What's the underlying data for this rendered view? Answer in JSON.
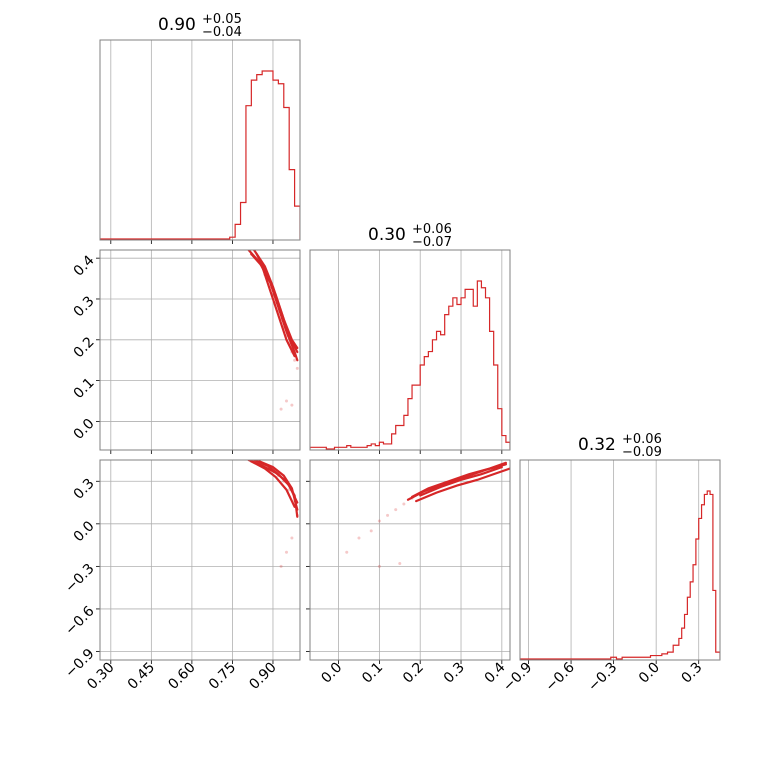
{
  "chart_data": {
    "type": "corner",
    "color": "#d62728",
    "parameters": [
      {
        "range": [
          0.26,
          1.0
        ],
        "ticks": [
          0.3,
          0.45,
          0.6,
          0.75,
          0.9
        ],
        "tick_labels": [
          "0.30",
          "0.45",
          "0.60",
          "0.75",
          "0.90"
        ],
        "title": {
          "median": "0.90",
          "plus": "+0.05",
          "minus": "−0.04"
        },
        "histogram": {
          "edges": [
            0.74,
            0.76,
            0.78,
            0.8,
            0.82,
            0.84,
            0.86,
            0.88,
            0.9,
            0.92,
            0.94,
            0.96,
            0.98,
            1.0
          ],
          "counts": [
            1,
            8,
            20,
            73,
            87,
            90,
            92,
            92,
            87,
            85,
            72,
            38,
            18
          ]
        }
      },
      {
        "range": [
          -0.07,
          0.42
        ],
        "ticks": [
          0.0,
          0.1,
          0.2,
          0.3,
          0.4
        ],
        "tick_labels": [
          "0.0",
          "0.1",
          "0.2",
          "0.3",
          "0.4"
        ],
        "title": {
          "median": "0.30",
          "plus": "+0.06",
          "minus": "−0.07"
        },
        "histogram": {
          "edges": [
            -0.07,
            -0.06,
            -0.05,
            -0.04,
            -0.03,
            -0.02,
            -0.01,
            0.0,
            0.01,
            0.02,
            0.03,
            0.04,
            0.05,
            0.06,
            0.07,
            0.08,
            0.09,
            0.1,
            0.11,
            0.12,
            0.13,
            0.14,
            0.15,
            0.16,
            0.17,
            0.18,
            0.19,
            0.2,
            0.21,
            0.22,
            0.23,
            0.24,
            0.25,
            0.26,
            0.27,
            0.28,
            0.29,
            0.3,
            0.31,
            0.32,
            0.33,
            0.34,
            0.35,
            0.36,
            0.37,
            0.38,
            0.39,
            0.4,
            0.41,
            0.42
          ],
          "counts": [
            1,
            1,
            1,
            1,
            0,
            0,
            1,
            1,
            1,
            2,
            1,
            1,
            1,
            1,
            2,
            3,
            2,
            4,
            3,
            3,
            9,
            14,
            14,
            20,
            30,
            38,
            38,
            50,
            55,
            58,
            65,
            70,
            68,
            80,
            85,
            90,
            86,
            90,
            95,
            95,
            85,
            100,
            96,
            90,
            70,
            50,
            24,
            8,
            4
          ]
        }
      },
      {
        "range": [
          -0.96,
          0.45
        ],
        "ticks": [
          -0.9,
          -0.6,
          -0.3,
          0.0,
          0.3
        ],
        "tick_labels": [
          "−0.9",
          "−0.6",
          "−0.3",
          "0.0",
          "0.3"
        ],
        "title": {
          "median": "0.32",
          "plus": "+0.06",
          "minus": "−0.09"
        },
        "histogram": {
          "edges": [
            -0.96,
            -0.32,
            -0.28,
            -0.24,
            -0.2,
            -0.16,
            -0.12,
            -0.08,
            -0.04,
            0.0,
            0.04,
            0.08,
            0.12,
            0.16,
            0.18,
            0.2,
            0.22,
            0.24,
            0.26,
            0.28,
            0.3,
            0.32,
            0.34,
            0.36,
            0.38,
            0.4,
            0.42,
            0.45
          ],
          "counts": [
            0,
            1,
            0,
            1,
            1,
            1,
            1,
            1,
            2,
            2,
            3,
            4,
            8,
            12,
            18,
            26,
            36,
            45,
            55,
            70,
            82,
            90,
            96,
            98,
            96,
            40,
            4
          ]
        }
      }
    ],
    "scatter": {
      "p1_vs_p0": {
        "points": [
          [
            0.82,
            0.41
          ],
          [
            0.84,
            0.4
          ],
          [
            0.86,
            0.38
          ],
          [
            0.87,
            0.36
          ],
          [
            0.88,
            0.35
          ],
          [
            0.89,
            0.33
          ],
          [
            0.9,
            0.31
          ],
          [
            0.91,
            0.29
          ],
          [
            0.92,
            0.27
          ],
          [
            0.93,
            0.25
          ],
          [
            0.94,
            0.23
          ],
          [
            0.95,
            0.21
          ],
          [
            0.96,
            0.19
          ],
          [
            0.97,
            0.17
          ],
          [
            0.98,
            0.15
          ],
          [
            0.99,
            0.13
          ],
          [
            0.95,
            0.05
          ],
          [
            0.97,
            0.04
          ],
          [
            0.93,
            0.03
          ]
        ],
        "contours": [
          [
            [
              0.81,
              0.42
            ],
            [
              0.85,
              0.39
            ],
            [
              0.89,
              0.34
            ],
            [
              0.92,
              0.28
            ],
            [
              0.95,
              0.22
            ],
            [
              0.98,
              0.17
            ],
            [
              0.99,
              0.15
            ]
          ],
          [
            [
              0.83,
              0.42
            ],
            [
              0.87,
              0.38
            ],
            [
              0.9,
              0.33
            ],
            [
              0.93,
              0.27
            ],
            [
              0.96,
              0.21
            ],
            [
              0.99,
              0.17
            ]
          ],
          [
            [
              0.82,
              0.41
            ],
            [
              0.86,
              0.38
            ],
            [
              0.89,
              0.32
            ],
            [
              0.92,
              0.26
            ],
            [
              0.95,
              0.2
            ],
            [
              0.98,
              0.16
            ]
          ],
          [
            [
              0.84,
              0.41
            ],
            [
              0.88,
              0.36
            ],
            [
              0.91,
              0.31
            ],
            [
              0.94,
              0.25
            ],
            [
              0.97,
              0.2
            ],
            [
              0.99,
              0.18
            ]
          ]
        ]
      },
      "p2_vs_p0": {
        "points": [
          [
            0.82,
            0.44
          ],
          [
            0.85,
            0.42
          ],
          [
            0.88,
            0.4
          ],
          [
            0.9,
            0.38
          ],
          [
            0.92,
            0.34
          ],
          [
            0.94,
            0.3
          ],
          [
            0.96,
            0.24
          ],
          [
            0.98,
            0.16
          ],
          [
            0.99,
            0.06
          ],
          [
            0.97,
            -0.1
          ],
          [
            0.95,
            -0.2
          ],
          [
            0.93,
            -0.3
          ]
        ],
        "contours": [
          [
            [
              0.81,
              0.45
            ],
            [
              0.86,
              0.41
            ],
            [
              0.91,
              0.36
            ],
            [
              0.95,
              0.3
            ],
            [
              0.98,
              0.2
            ],
            [
              0.99,
              0.05
            ]
          ],
          [
            [
              0.83,
              0.45
            ],
            [
              0.88,
              0.41
            ],
            [
              0.92,
              0.35
            ],
            [
              0.96,
              0.27
            ],
            [
              0.99,
              0.15
            ]
          ],
          [
            [
              0.82,
              0.44
            ],
            [
              0.87,
              0.39
            ],
            [
              0.91,
              0.33
            ],
            [
              0.95,
              0.24
            ],
            [
              0.98,
              0.12
            ]
          ],
          [
            [
              0.85,
              0.44
            ],
            [
              0.9,
              0.4
            ],
            [
              0.94,
              0.34
            ],
            [
              0.97,
              0.25
            ],
            [
              0.99,
              0.1
            ]
          ]
        ]
      },
      "p2_vs_p1": {
        "points": [
          [
            0.02,
            -0.2
          ],
          [
            0.05,
            -0.1
          ],
          [
            0.08,
            -0.05
          ],
          [
            0.1,
            0.02
          ],
          [
            0.12,
            0.06
          ],
          [
            0.14,
            0.1
          ],
          [
            0.16,
            0.14
          ],
          [
            0.18,
            0.18
          ],
          [
            0.2,
            0.21
          ],
          [
            0.23,
            0.25
          ],
          [
            0.26,
            0.28
          ],
          [
            0.29,
            0.31
          ],
          [
            0.32,
            0.33
          ],
          [
            0.35,
            0.36
          ],
          [
            0.38,
            0.39
          ],
          [
            0.4,
            0.42
          ],
          [
            0.15,
            -0.28
          ],
          [
            0.1,
            -0.3
          ]
        ],
        "contours": [
          [
            [
              0.17,
              0.17
            ],
            [
              0.21,
              0.23
            ],
            [
              0.26,
              0.28
            ],
            [
              0.31,
              0.33
            ],
            [
              0.36,
              0.38
            ],
            [
              0.41,
              0.42
            ]
          ],
          [
            [
              0.19,
              0.16
            ],
            [
              0.24,
              0.22
            ],
            [
              0.29,
              0.27
            ],
            [
              0.34,
              0.31
            ],
            [
              0.39,
              0.36
            ],
            [
              0.42,
              0.39
            ]
          ],
          [
            [
              0.18,
              0.19
            ],
            [
              0.22,
              0.25
            ],
            [
              0.27,
              0.3
            ],
            [
              0.32,
              0.35
            ],
            [
              0.37,
              0.39
            ],
            [
              0.41,
              0.43
            ]
          ],
          [
            [
              0.2,
              0.2
            ],
            [
              0.25,
              0.26
            ],
            [
              0.3,
              0.31
            ],
            [
              0.35,
              0.35
            ],
            [
              0.4,
              0.4
            ]
          ]
        ]
      }
    }
  }
}
